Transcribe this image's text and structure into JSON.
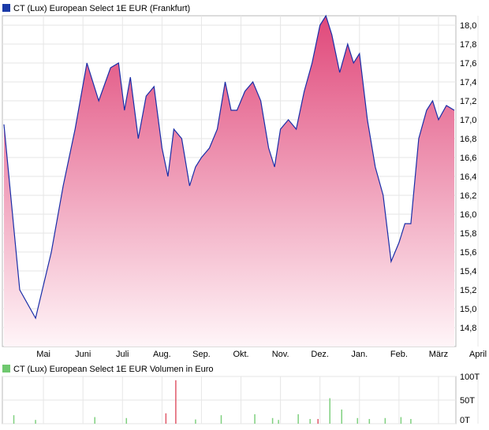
{
  "chart_data": [
    {
      "type": "area",
      "legend": "CT (Lux) European Select 1E EUR (Frankfurt)",
      "colors": {
        "line": "#1a2ea8",
        "fill_top": "#e0487a",
        "fill_bottom": "#fff5f8",
        "legend_swatch": "#1a3aa8"
      },
      "ylim": [
        14.6,
        18.1
      ],
      "yticks": [
        "18,0",
        "17,8",
        "17,6",
        "17,4",
        "17,2",
        "17,0",
        "16,8",
        "16,6",
        "16,4",
        "16,2",
        "16,0",
        "15,8",
        "15,6",
        "15,4",
        "15,2",
        "15,0",
        "14,8"
      ],
      "xticks": [
        "Mai",
        "Juni",
        "Juli",
        "Aug.",
        "Sep.",
        "Okt.",
        "Nov.",
        "Dez.",
        "Jan.",
        "Feb.",
        "März",
        "April"
      ],
      "grid": true,
      "series": [
        {
          "x": [
            0,
            0.4,
            0.8,
            1.2,
            1.5,
            1.8,
            2.1,
            2.4,
            2.7,
            2.9,
            3.05,
            3.2,
            3.4,
            3.6,
            3.8,
            4.0,
            4.15,
            4.3,
            4.5,
            4.7,
            4.85,
            5.0,
            5.2,
            5.4,
            5.6,
            5.75,
            5.9,
            6.1,
            6.3,
            6.5,
            6.7,
            6.85,
            7.0,
            7.2,
            7.4,
            7.6,
            7.8,
            8.0,
            8.15,
            8.3,
            8.5,
            8.7,
            8.85,
            9.0,
            9.2,
            9.4,
            9.6,
            9.8,
            10.0,
            10.15,
            10.3,
            10.5,
            10.7,
            10.85,
            11.0,
            11.2,
            11.4
          ],
          "values": [
            16.95,
            15.2,
            14.9,
            15.6,
            16.3,
            16.9,
            17.6,
            17.2,
            17.55,
            17.6,
            17.1,
            17.45,
            16.8,
            17.25,
            17.35,
            16.7,
            16.4,
            16.9,
            16.8,
            16.3,
            16.5,
            16.6,
            16.7,
            16.9,
            17.4,
            17.1,
            17.1,
            17.3,
            17.4,
            17.2,
            16.7,
            16.5,
            16.9,
            17.0,
            16.9,
            17.3,
            17.6,
            18.0,
            18.1,
            17.9,
            17.5,
            17.8,
            17.6,
            17.7,
            17.0,
            16.5,
            16.2,
            15.5,
            15.7,
            15.9,
            15.9,
            16.8,
            17.1,
            17.2,
            17.0,
            17.15,
            17.1
          ]
        }
      ]
    },
    {
      "type": "bar",
      "legend": "CT (Lux) European Select 1E EUR Volumen in Euro",
      "colors": {
        "green": "#7fd07f",
        "red": "#e05a6a",
        "legend_swatch": "#6fc86f"
      },
      "ylim": [
        0,
        100
      ],
      "yticks": [
        "100T",
        "50T",
        "0T"
      ],
      "xticks": [
        "Mai",
        "Juni",
        "Juli",
        "Aug.",
        "Sep.",
        "Okt.",
        "Nov.",
        "Dez.",
        "Jan.",
        "Feb.",
        "März",
        "April"
      ],
      "grid": true,
      "x": [
        0.25,
        0.8,
        2.3,
        3.1,
        4.1,
        4.35,
        4.85,
        5.5,
        6.35,
        6.8,
        6.95,
        7.45,
        7.75,
        7.95,
        8.25,
        8.55,
        8.95,
        9.25,
        9.65,
        10.05,
        10.3
      ],
      "values": [
        18,
        8,
        14,
        12,
        22,
        92,
        9,
        18,
        20,
        12,
        8,
        20,
        10,
        10,
        54,
        30,
        12,
        10,
        12,
        14,
        10
      ],
      "bar_colors": [
        "green",
        "green",
        "green",
        "green",
        "red",
        "red",
        "green",
        "green",
        "green",
        "green",
        "green",
        "green",
        "green",
        "red",
        "green",
        "green",
        "green",
        "green",
        "green",
        "green",
        "green"
      ]
    }
  ]
}
